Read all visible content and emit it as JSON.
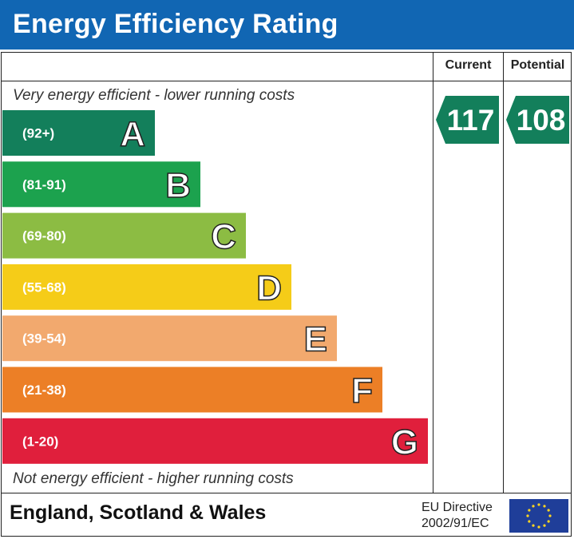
{
  "header": {
    "title": "Energy Efficiency Rating"
  },
  "columns": {
    "current": "Current",
    "potential": "Potential"
  },
  "notes": {
    "top": "Very energy efficient - lower running costs",
    "bottom": "Not energy efficient - higher running costs"
  },
  "footer": {
    "region": "England, Scotland & Wales",
    "directive_line1": "EU Directive",
    "directive_line2": "2002/91/EC"
  },
  "chart_data": {
    "type": "bar",
    "categories": [
      "A",
      "B",
      "C",
      "D",
      "E",
      "F",
      "G"
    ],
    "ranges": [
      "(92+)",
      "(81-91)",
      "(69-80)",
      "(55-68)",
      "(39-54)",
      "(21-38)",
      "(1-20)"
    ],
    "colors": [
      "#137f5b",
      "#1ca24e",
      "#8cbc43",
      "#f5cc18",
      "#f2a96e",
      "#ec7f26",
      "#e01f3c"
    ],
    "current": {
      "value": 117,
      "band": "A",
      "color": "#137f5b"
    },
    "potential": {
      "value": 108,
      "band": "A",
      "color": "#137f5b"
    }
  }
}
